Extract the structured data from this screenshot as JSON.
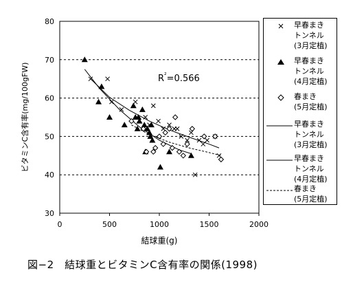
{
  "chart_data": {
    "type": "scatter",
    "title": "",
    "xlabel": "結球重(g)",
    "ylabel": "ビタミンC含有率(mg/100gFW)",
    "xlim": [
      0,
      2000
    ],
    "ylim": [
      30,
      80
    ],
    "xticks": [
      "0",
      "500",
      "1000",
      "1500",
      "2000"
    ],
    "yticks": [
      "30",
      "40",
      "50",
      "60",
      "70",
      "80"
    ],
    "grid": "horizontal dashed",
    "legend_position": "right",
    "annotation": "R²=0.566",
    "series": [
      {
        "name": "早春まき\nトンネル\n(3月定植)",
        "marker": "x",
        "points": [
          [
            310,
            65
          ],
          [
            480,
            65
          ],
          [
            520,
            59
          ],
          [
            620,
            57
          ],
          [
            760,
            59
          ],
          [
            860,
            55
          ],
          [
            900,
            53
          ],
          [
            940,
            58
          ],
          [
            990,
            54
          ],
          [
            1040,
            52
          ],
          [
            1100,
            53
          ],
          [
            1150,
            52
          ],
          [
            1180,
            52
          ],
          [
            1220,
            50
          ],
          [
            1280,
            49
          ],
          [
            1320,
            51
          ],
          [
            1360,
            40
          ],
          [
            1400,
            49
          ],
          [
            1440,
            48
          ],
          [
            1480,
            49
          ],
          [
            1560,
            50
          ],
          [
            1600,
            45
          ]
        ]
      },
      {
        "name": "早春まき\nトンネル\n(4月定植)",
        "marker": "triangle",
        "points": [
          [
            250,
            70
          ],
          [
            390,
            59
          ],
          [
            420,
            63
          ],
          [
            500,
            55
          ],
          [
            650,
            53
          ],
          [
            740,
            58
          ],
          [
            760,
            55
          ],
          [
            780,
            52
          ],
          [
            790,
            55
          ],
          [
            800,
            54
          ],
          [
            830,
            57
          ],
          [
            850,
            53
          ],
          [
            860,
            46
          ],
          [
            880,
            52
          ],
          [
            900,
            51
          ],
          [
            910,
            50
          ],
          [
            920,
            53
          ],
          [
            930,
            49
          ],
          [
            1010,
            42
          ],
          [
            1100,
            46
          ],
          [
            1320,
            45
          ]
        ]
      },
      {
        "name": "春まき\n(5月定植)",
        "marker": "diamond",
        "points": [
          [
            720,
            54
          ],
          [
            840,
            52
          ],
          [
            870,
            46
          ],
          [
            940,
            46
          ],
          [
            960,
            47
          ],
          [
            1000,
            50
          ],
          [
            1040,
            48
          ],
          [
            1060,
            51
          ],
          [
            1100,
            52
          ],
          [
            1130,
            47
          ],
          [
            1160,
            55
          ],
          [
            1200,
            46
          ],
          [
            1240,
            45
          ],
          [
            1280,
            48
          ],
          [
            1330,
            52
          ],
          [
            1450,
            50
          ],
          [
            1560,
            50
          ],
          [
            1620,
            44
          ]
        ]
      },
      {
        "name": "早春まき\nトンネル\n(3月定植)",
        "line": "solid-fit",
        "x": [
          310,
          500,
          700,
          900,
          1100,
          1300,
          1500,
          1600
        ],
        "y": [
          65.0,
          60.2,
          56.8,
          54.0,
          51.7,
          49.8,
          48.0,
          47.0
        ]
      },
      {
        "name": "早春まき\nトンネル\n(4月定植)",
        "line": "solid-fit",
        "x": [
          250,
          400,
          600,
          800,
          1000,
          1200,
          1320
        ],
        "y": [
          67.5,
          62.5,
          57.0,
          52.5,
          49.0,
          46.5,
          45.5
        ]
      },
      {
        "name": "春まき\n(5月定植)",
        "line": "dashed-fit",
        "x": [
          720,
          900,
          1100,
          1300,
          1500,
          1620
        ],
        "y": [
          53.0,
          50.5,
          48.5,
          47.0,
          45.8,
          45.0
        ]
      }
    ]
  },
  "caption": "図−2　結球重とビタミンC含有率の関係(1998)"
}
